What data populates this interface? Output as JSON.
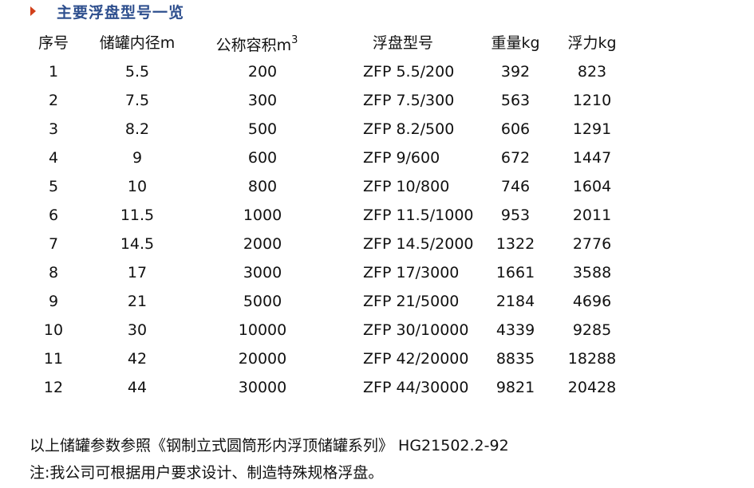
{
  "title": "主要浮盘型号一览",
  "headers": [
    "序号",
    "储罐内径m",
    "公称容积m",
    "浮盘型号",
    "重量kg",
    "浮力kg"
  ],
  "volume_unit_sup": "3",
  "rows": [
    [
      "1",
      "5.5",
      "200",
      "ZFP 5.5/200",
      "392",
      "823"
    ],
    [
      "2",
      "7.5",
      "300",
      "ZFP 7.5/300",
      "563",
      "1210"
    ],
    [
      "3",
      "8.2",
      "500",
      "ZFP 8.2/500",
      "606",
      "1291"
    ],
    [
      "4",
      "9",
      "600",
      "ZFP 9/600",
      "672",
      "1447"
    ],
    [
      "5",
      "10",
      "800",
      "ZFP 10/800",
      "746",
      "1604"
    ],
    [
      "6",
      "11.5",
      "1000",
      "ZFP 11.5/1000",
      "953",
      "2011"
    ],
    [
      "7",
      "14.5",
      "2000",
      "ZFP 14.5/2000",
      "1322",
      "2776"
    ],
    [
      "8",
      "17",
      "3000",
      "ZFP 17/3000",
      "1661",
      "3588"
    ],
    [
      "9",
      "21",
      "5000",
      "ZFP 21/5000",
      "2184",
      "4696"
    ],
    [
      "10",
      "30",
      "10000",
      "ZFP 30/10000",
      "4339",
      "9285"
    ],
    [
      "11",
      "42",
      "20000",
      "ZFP 42/20000",
      "8835",
      "18288"
    ],
    [
      "12",
      "44",
      "30000",
      "ZFP 44/30000",
      "9821",
      "20428"
    ]
  ],
  "notes": [
    "以上储罐参数参照《钢制立式圆筒形内浮顶储罐系列》 HG21502.2-92",
    "注:我公司可根据用户要求设计、制造特殊规格浮盘。"
  ],
  "colors": {
    "title": "#2e4f8e",
    "arrow": "#d2401a"
  }
}
